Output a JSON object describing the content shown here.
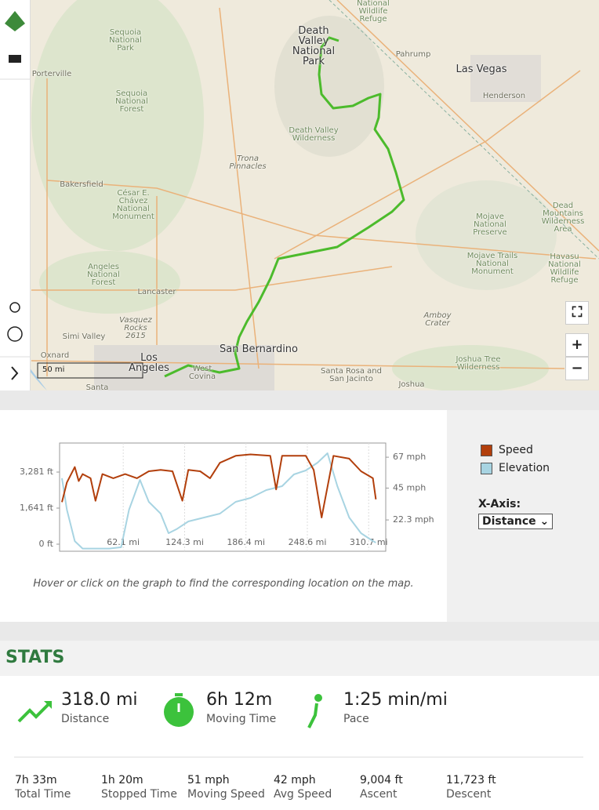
{
  "map": {
    "labels": [
      "Death Valley National Park",
      "National Wildlife Refuge",
      "Pahrump",
      "Las Vegas",
      "Henderson",
      "Porterville",
      "Sequoia National Park",
      "Sequoia National Forest",
      "Death Valley Wilderness",
      "Trona Pinnacles",
      "Bakersfield",
      "César E. Chávez National Monument",
      "Mojave National Preserve",
      "Dead Mountains Wilderness Area",
      "Angeles National Forest",
      "Mojave Trails National Monument",
      "Havasu National Wildlife Refuge",
      "Lancaster",
      "Amboy Crater",
      "Vasquez Rocks 2615",
      "Simi Valley",
      "San Bernardino",
      "Oxnard",
      "Los Angeles",
      "Joshua Tree Wilderness",
      "West Covina",
      "Santa Rosa and San Jacinto",
      "Joshua",
      "Santa"
    ],
    "scale": "50 mi"
  },
  "chart_data": {
    "type": "line",
    "series": [
      {
        "name": "Speed",
        "color": "#b23f0c",
        "axis": "y2",
        "x": [
          0,
          5,
          13,
          17,
          21,
          29,
          34,
          41,
          52,
          64,
          76,
          88,
          100,
          112,
          122,
          128,
          140,
          150,
          160,
          176,
          191,
          211,
          217,
          223,
          247,
          255,
          263,
          275,
          291,
          303,
          315,
          318
        ],
        "values": [
          35,
          49,
          60,
          50,
          55,
          52,
          36,
          55,
          52,
          55,
          52,
          57,
          58,
          57,
          36,
          58,
          57,
          52,
          63,
          68,
          69,
          68,
          44,
          68,
          68,
          58,
          24,
          68,
          66,
          57,
          52,
          37
        ]
      },
      {
        "name": "Elevation",
        "color": "#a8d4e2",
        "axis": "y",
        "x": [
          0,
          5,
          13,
          21,
          48,
          60,
          68,
          79,
          88,
          100,
          108,
          116,
          128,
          144,
          160,
          176,
          191,
          207,
          223,
          235,
          247,
          259,
          269,
          279,
          291,
          303,
          315,
          318
        ],
        "values": [
          3000,
          1570,
          140,
          -200,
          -200,
          -140,
          1570,
          2925,
          1926,
          1391,
          500,
          680,
          1035,
          1213,
          1391,
          1926,
          2105,
          2460,
          2640,
          3175,
          3353,
          3710,
          4138,
          2640,
          1213,
          500,
          143,
          71
        ]
      }
    ],
    "xlim": [
      0,
      328
    ],
    "xticks": [
      {
        "value": 62.1,
        "label": "62.1 mi"
      },
      {
        "value": 124.3,
        "label": "124.3 mi"
      },
      {
        "value": 186.4,
        "label": "186.4 mi"
      },
      {
        "value": 248.6,
        "label": "248.6 mi"
      },
      {
        "value": 310.7,
        "label": "310.7 mi"
      }
    ],
    "ylim": [
      -321,
      4602
    ],
    "yticks": [
      {
        "value": 0,
        "label": "0 ft"
      },
      {
        "value": 1641,
        "label": "1,641 ft"
      },
      {
        "value": 3281,
        "label": "3,281 ft"
      }
    ],
    "y2lim": [
      0,
      77.1
    ],
    "y2ticks": [
      {
        "value": 22.3,
        "label": "22.3 mph"
      },
      {
        "value": 45,
        "label": "45 mph"
      },
      {
        "value": 67,
        "label": "67 mph"
      }
    ],
    "caption": "Hover or click on the graph to find the corresponding location on the map.",
    "x_axis_label": "X-Axis:",
    "x_axis_choice": "Distance"
  },
  "stats": {
    "title": "STATS",
    "main": [
      {
        "value": "318.0 mi",
        "label": "Distance"
      },
      {
        "value": "6h 12m",
        "label": "Moving Time"
      },
      {
        "value": "1:25 min/mi",
        "label": "Pace"
      }
    ],
    "details": [
      {
        "value": "7h 33m",
        "label": "Total Time"
      },
      {
        "value": "1h 20m",
        "label": "Stopped Time"
      },
      {
        "value": "51 mph",
        "label": "Moving Speed"
      },
      {
        "value": "42 mph",
        "label": "Avg Speed"
      },
      {
        "value": "9,004 ft",
        "label": "Ascent"
      },
      {
        "value": "11,723 ft",
        "label": "Descent"
      }
    ]
  }
}
